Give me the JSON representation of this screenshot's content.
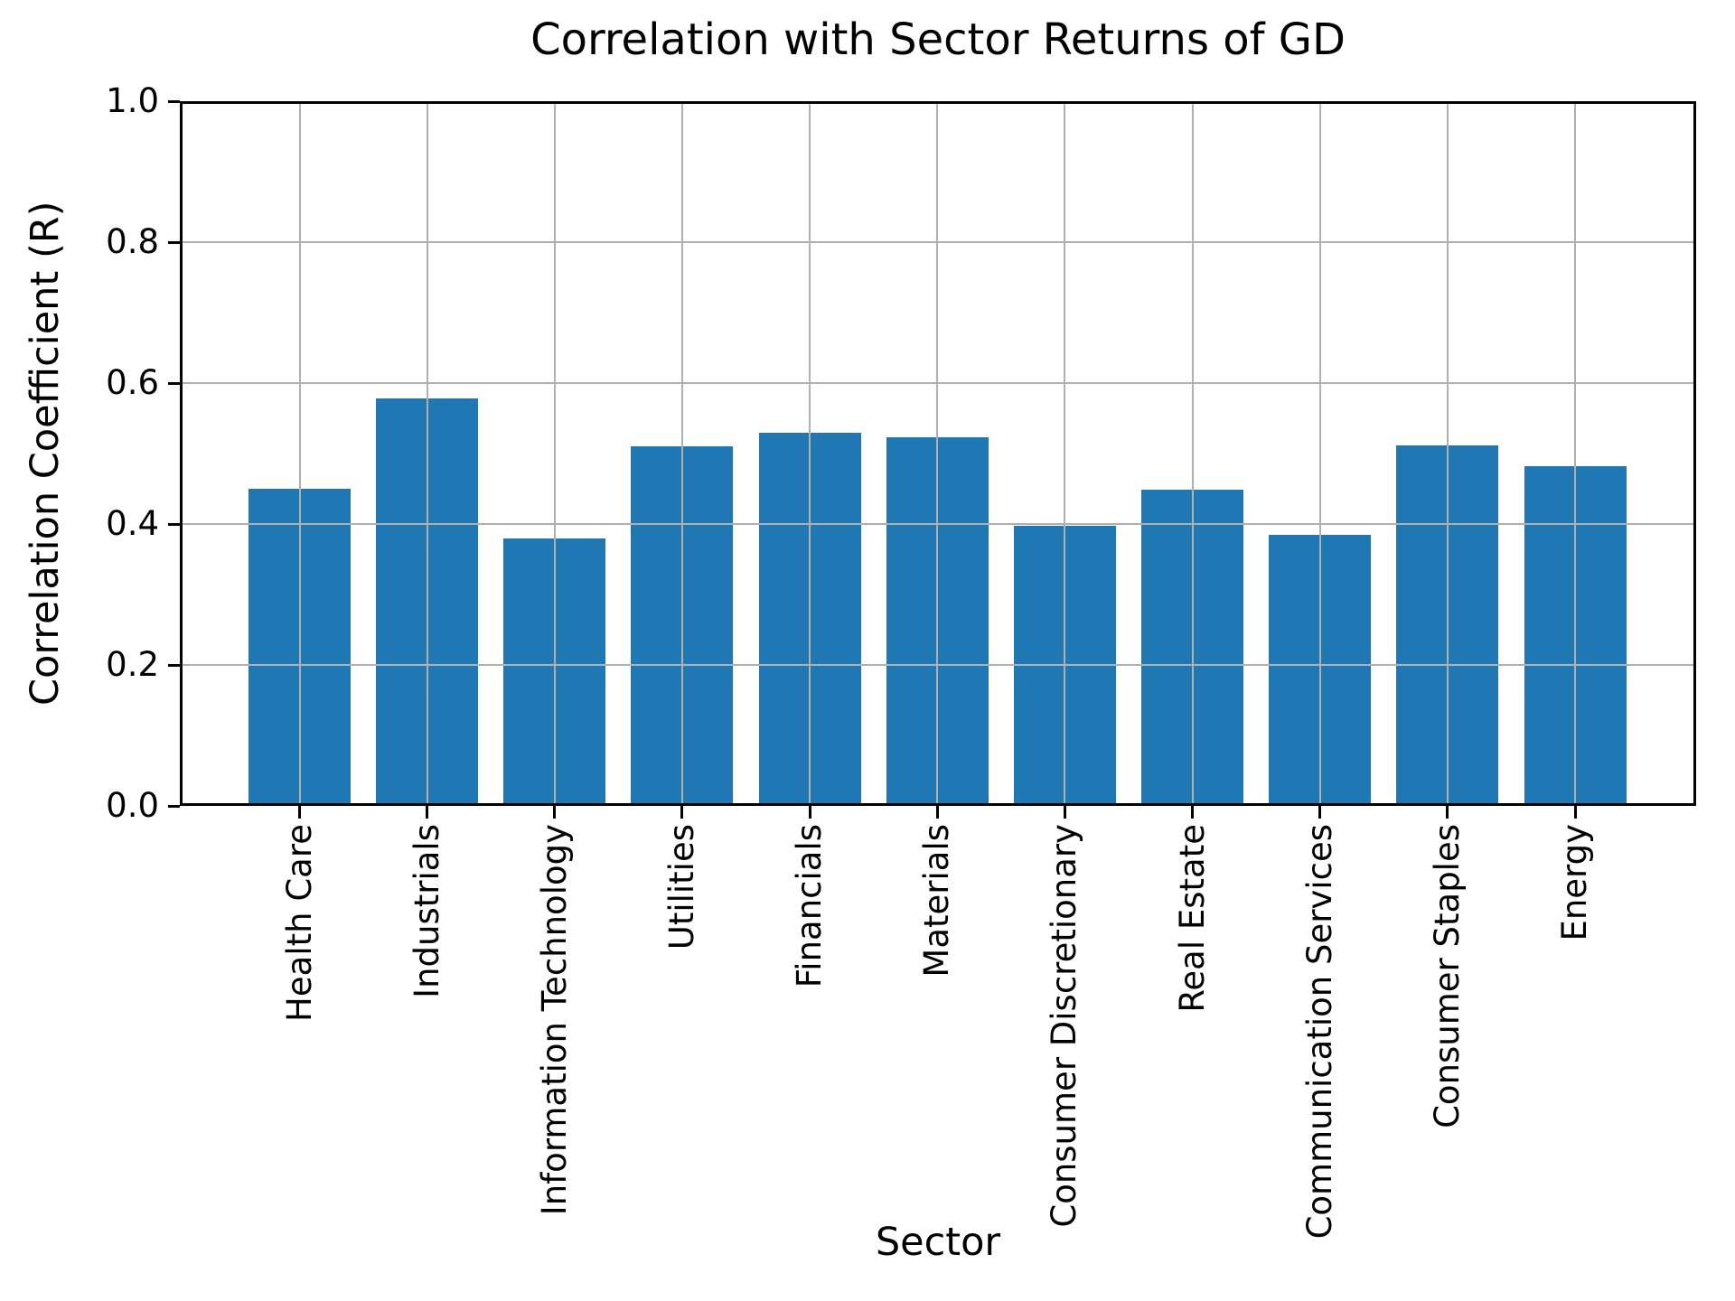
{
  "chart_data": {
    "type": "bar",
    "title": "Correlation with Sector Returns of GD",
    "xlabel": "Sector",
    "ylabel": "Correlation Coefficient (R)",
    "categories": [
      "Health Care",
      "Industrials",
      "Information Technology",
      "Utilities",
      "Financials",
      "Materials",
      "Consumer Discretionary",
      "Real Estate",
      "Communication Services",
      "Consumer Staples",
      "Energy"
    ],
    "values": [
      0.45,
      0.578,
      0.379,
      0.51,
      0.529,
      0.523,
      0.398,
      0.449,
      0.385,
      0.512,
      0.482
    ],
    "ylim": [
      0.0,
      1.0
    ],
    "ytick_labels": [
      "0.0",
      "0.2",
      "0.4",
      "0.6",
      "0.8",
      "1.0"
    ],
    "ytick_values": [
      0.0,
      0.2,
      0.4,
      0.6,
      0.8,
      1.0
    ],
    "x_tick_rotation": 90,
    "grid": true,
    "grid_over_bars": true,
    "legend": null,
    "colors": {
      "bar": "#1f77b4",
      "grid": "#b0b0b0",
      "spine": "#000000",
      "text": "#000000",
      "background": "#ffffff"
    }
  }
}
